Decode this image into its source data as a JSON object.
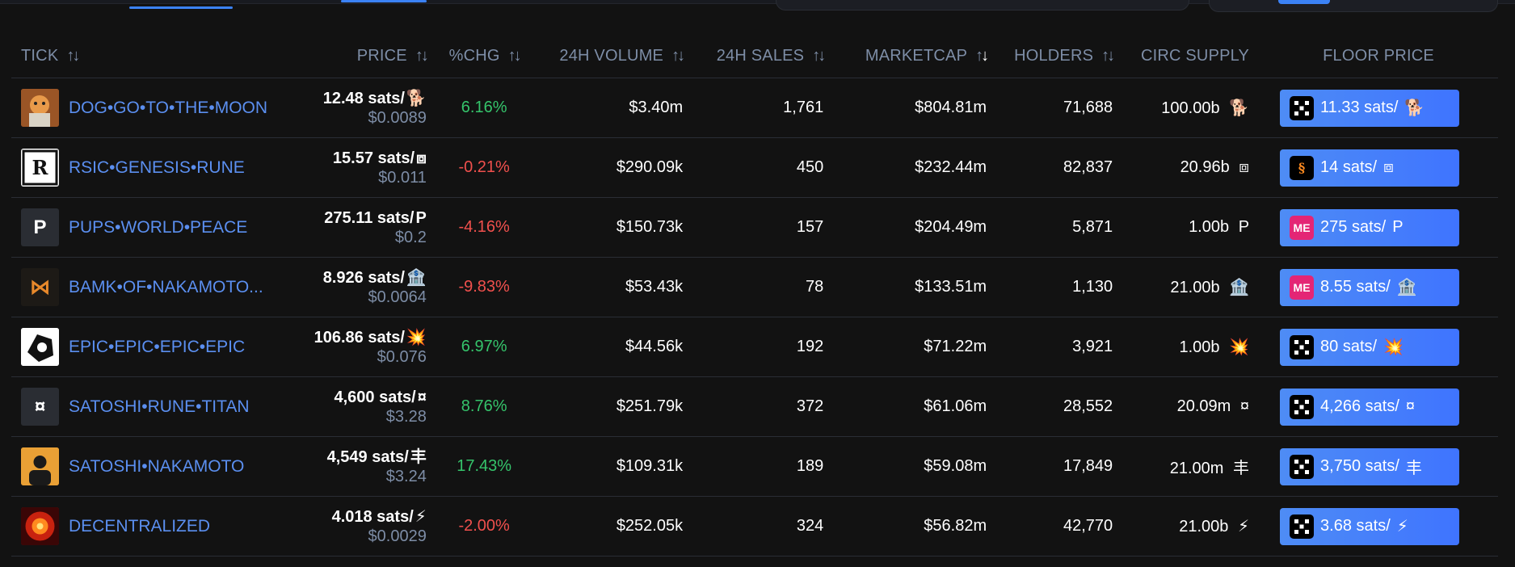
{
  "columns": [
    {
      "label": "TICK",
      "sort": "none"
    },
    {
      "label": "PRICE",
      "sort": "none"
    },
    {
      "label": "%CHG",
      "sort": "none"
    },
    {
      "label": "24H VOLUME",
      "sort": "none"
    },
    {
      "label": "24H SALES",
      "sort": "none"
    },
    {
      "label": "MARKETCAP",
      "sort": "desc"
    },
    {
      "label": "HOLDERS",
      "sort": "none"
    },
    {
      "label": "CIRC SUPPLY"
    },
    {
      "label": "FLOOR PRICE"
    }
  ],
  "rows": [
    {
      "tick": "DOG•GO•TO•THE•MOON",
      "avatar": "dog",
      "symbol": "🐕",
      "price": "12.48 sats/",
      "price_usd": "$0.0089",
      "chg": "6.16%",
      "chg_dir": "pos",
      "volume": "$3.40m",
      "sales": "1,761",
      "marketcap": "$804.81m",
      "holders": "71,688",
      "supply": "100.00b",
      "floor_market": "okx",
      "floor": "11.33 sats/"
    },
    {
      "tick": "RSIC•GENESIS•RUNE",
      "avatar": "rsic",
      "symbol": "⧈",
      "price": "15.57 sats/",
      "price_usd": "$0.011",
      "chg": "-0.21%",
      "chg_dir": "neg",
      "volume": "$290.09k",
      "sales": "450",
      "marketcap": "$232.44m",
      "holders": "82,837",
      "supply": "20.96b",
      "floor_market": "ms",
      "floor": "14 sats/"
    },
    {
      "tick": "PUPS•WORLD•PEACE",
      "avatar": "pups",
      "symbol": "P",
      "price": "275.11 sats/",
      "price_usd": "$0.2",
      "chg": "-4.16%",
      "chg_dir": "neg",
      "volume": "$150.73k",
      "sales": "157",
      "marketcap": "$204.49m",
      "holders": "5,871",
      "supply": "1.00b",
      "floor_market": "me",
      "floor": "275 sats/"
    },
    {
      "tick": "BAMK•OF•NAKAMOTO...",
      "avatar": "bamk",
      "symbol": "🏦",
      "price": "8.926 sats/",
      "price_usd": "$0.0064",
      "chg": "-9.83%",
      "chg_dir": "neg",
      "volume": "$53.43k",
      "sales": "78",
      "marketcap": "$133.51m",
      "holders": "1,130",
      "supply": "21.00b",
      "floor_market": "me",
      "floor": "8.55 sats/"
    },
    {
      "tick": "EPIC•EPIC•EPIC•EPIC",
      "avatar": "epic",
      "symbol": "💥",
      "price": "106.86 sats/",
      "price_usd": "$0.076",
      "chg": "6.97%",
      "chg_dir": "pos",
      "volume": "$44.56k",
      "sales": "192",
      "marketcap": "$71.22m",
      "holders": "3,921",
      "supply": "1.00b",
      "floor_market": "okx",
      "floor": "80 sats/"
    },
    {
      "tick": "SATOSHI•RUNE•TITAN",
      "avatar": "titan",
      "symbol": "¤",
      "price": "4,600 sats/",
      "price_usd": "$3.28",
      "chg": "8.76%",
      "chg_dir": "pos",
      "volume": "$251.79k",
      "sales": "372",
      "marketcap": "$61.06m",
      "holders": "28,552",
      "supply": "20.09m",
      "floor_market": "okx",
      "floor": "4,266 sats/"
    },
    {
      "tick": "SATOSHI•NAKAMOTO",
      "avatar": "satoshi",
      "symbol": "丰",
      "price": "4,549 sats/",
      "price_usd": "$3.24",
      "chg": "17.43%",
      "chg_dir": "pos",
      "volume": "$109.31k",
      "sales": "189",
      "marketcap": "$59.08m",
      "holders": "17,849",
      "supply": "21.00m",
      "floor_market": "okx",
      "floor": "3,750 sats/"
    },
    {
      "tick": "DECENTRALIZED",
      "avatar": "decentral",
      "symbol": "⚡",
      "price": "4.018 sats/",
      "price_usd": "$0.0029",
      "chg": "-2.00%",
      "chg_dir": "neg",
      "volume": "$252.05k",
      "sales": "324",
      "marketcap": "$56.82m",
      "holders": "42,770",
      "supply": "21.00b",
      "floor_market": "okx",
      "floor": "3.68 sats/"
    }
  ]
}
